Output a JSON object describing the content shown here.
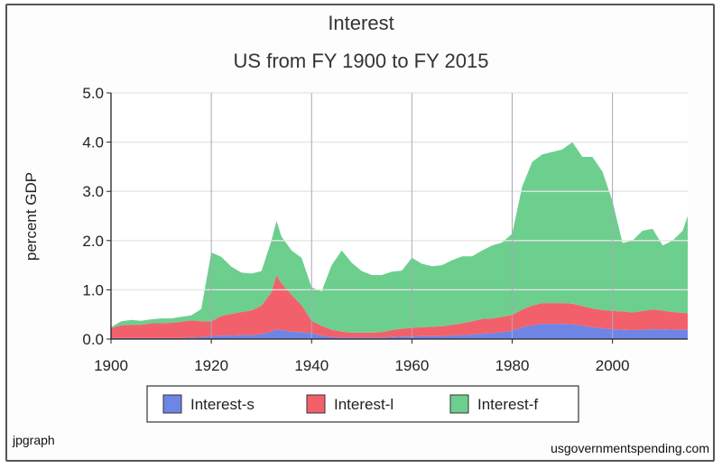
{
  "chart_data": {
    "type": "area",
    "stacked": true,
    "title": "Interest",
    "subtitle": "US from FY 1900 to FY 2015",
    "xlabel": "",
    "ylabel": "percent GDP",
    "xlim": [
      1900,
      2015
    ],
    "ylim": [
      0,
      5
    ],
    "xticks": [
      1900,
      1920,
      1940,
      1960,
      1980,
      2000
    ],
    "xtick_labels": [
      "1900",
      "1920",
      "1940",
      "1960",
      "1980",
      "2000"
    ],
    "yticks": [
      0,
      1,
      2,
      3,
      4,
      5
    ],
    "ytick_labels": [
      "0.0",
      "1.0",
      "2.0",
      "3.0",
      "4.0",
      "5.0"
    ],
    "grid": true,
    "legend": "bottom",
    "x": [
      1900,
      1902,
      1904,
      1906,
      1908,
      1910,
      1912,
      1914,
      1916,
      1918,
      1920,
      1922,
      1924,
      1926,
      1928,
      1930,
      1932,
      1933,
      1934,
      1936,
      1938,
      1940,
      1942,
      1944,
      1946,
      1948,
      1950,
      1952,
      1954,
      1956,
      1958,
      1960,
      1962,
      1964,
      1966,
      1968,
      1970,
      1972,
      1974,
      1976,
      1978,
      1980,
      1982,
      1984,
      1986,
      1988,
      1990,
      1992,
      1994,
      1996,
      1998,
      2000,
      2002,
      2004,
      2006,
      2008,
      2010,
      2012,
      2014,
      2015
    ],
    "series": [
      {
        "name": "Interest-s",
        "color": "#6f85e6",
        "values": [
          0.02,
          0.02,
          0.02,
          0.02,
          0.02,
          0.02,
          0.02,
          0.02,
          0.03,
          0.04,
          0.06,
          0.07,
          0.07,
          0.08,
          0.08,
          0.1,
          0.15,
          0.2,
          0.18,
          0.15,
          0.14,
          0.12,
          0.07,
          0.04,
          0.03,
          0.03,
          0.03,
          0.03,
          0.03,
          0.04,
          0.05,
          0.05,
          0.06,
          0.06,
          0.06,
          0.07,
          0.08,
          0.09,
          0.11,
          0.12,
          0.14,
          0.17,
          0.24,
          0.28,
          0.31,
          0.31,
          0.31,
          0.3,
          0.27,
          0.24,
          0.22,
          0.2,
          0.19,
          0.18,
          0.19,
          0.2,
          0.2,
          0.19,
          0.19,
          0.19
        ]
      },
      {
        "name": "Interest-l",
        "color": "#f2616b",
        "values": [
          0.2,
          0.26,
          0.27,
          0.27,
          0.3,
          0.3,
          0.31,
          0.33,
          0.35,
          0.32,
          0.3,
          0.4,
          0.44,
          0.47,
          0.5,
          0.58,
          0.8,
          1.1,
          0.95,
          0.75,
          0.55,
          0.25,
          0.2,
          0.15,
          0.12,
          0.1,
          0.1,
          0.1,
          0.11,
          0.14,
          0.16,
          0.18,
          0.18,
          0.19,
          0.2,
          0.22,
          0.24,
          0.27,
          0.3,
          0.3,
          0.31,
          0.32,
          0.36,
          0.4,
          0.42,
          0.42,
          0.42,
          0.42,
          0.4,
          0.38,
          0.37,
          0.37,
          0.37,
          0.36,
          0.38,
          0.4,
          0.38,
          0.36,
          0.34,
          0.33
        ]
      },
      {
        "name": "Interest-f",
        "color": "#6ccf8e",
        "values": [
          0.02,
          0.08,
          0.1,
          0.08,
          0.08,
          0.1,
          0.09,
          0.1,
          0.1,
          0.25,
          1.4,
          1.2,
          0.96,
          0.8,
          0.75,
          0.7,
          1.05,
          1.1,
          0.95,
          0.9,
          0.96,
          0.68,
          0.7,
          1.31,
          1.65,
          1.42,
          1.25,
          1.17,
          1.16,
          1.19,
          1.18,
          1.42,
          1.29,
          1.23,
          1.24,
          1.31,
          1.36,
          1.32,
          1.39,
          1.48,
          1.51,
          1.65,
          2.5,
          2.92,
          3.02,
          3.07,
          3.12,
          3.28,
          3.03,
          3.08,
          2.81,
          2.23,
          1.39,
          1.46,
          1.63,
          1.64,
          1.32,
          1.45,
          1.67,
          1.98
        ]
      }
    ]
  },
  "credits": {
    "left": "jpgraph",
    "right": "usgovernmentspending.com"
  }
}
